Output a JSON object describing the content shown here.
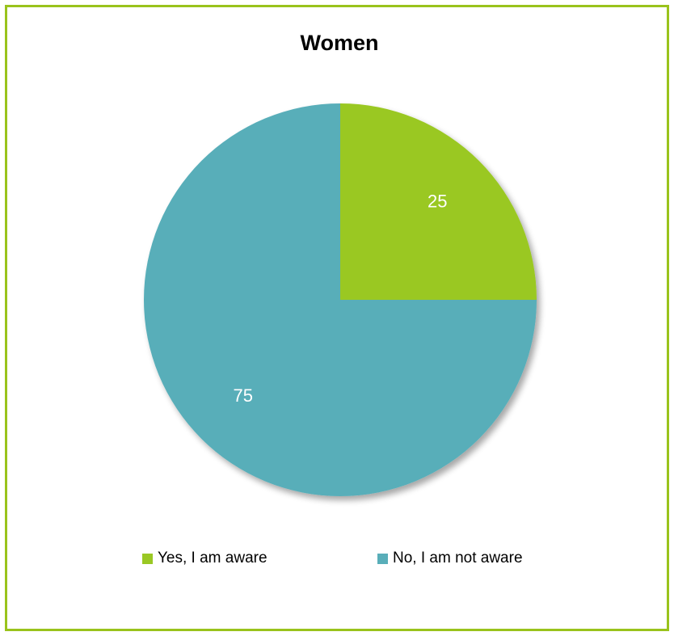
{
  "chart_data": {
    "type": "pie",
    "title": "Women",
    "slices": [
      {
        "label": "Yes, I am aware",
        "value": 25,
        "color": "#9ac824"
      },
      {
        "label": "No, I am not aware",
        "value": 75,
        "color": "#59aeb9"
      }
    ],
    "legend_position": "bottom",
    "data_label_color": "#ffffff"
  },
  "frame": {
    "border_color": "#9ac31c"
  }
}
